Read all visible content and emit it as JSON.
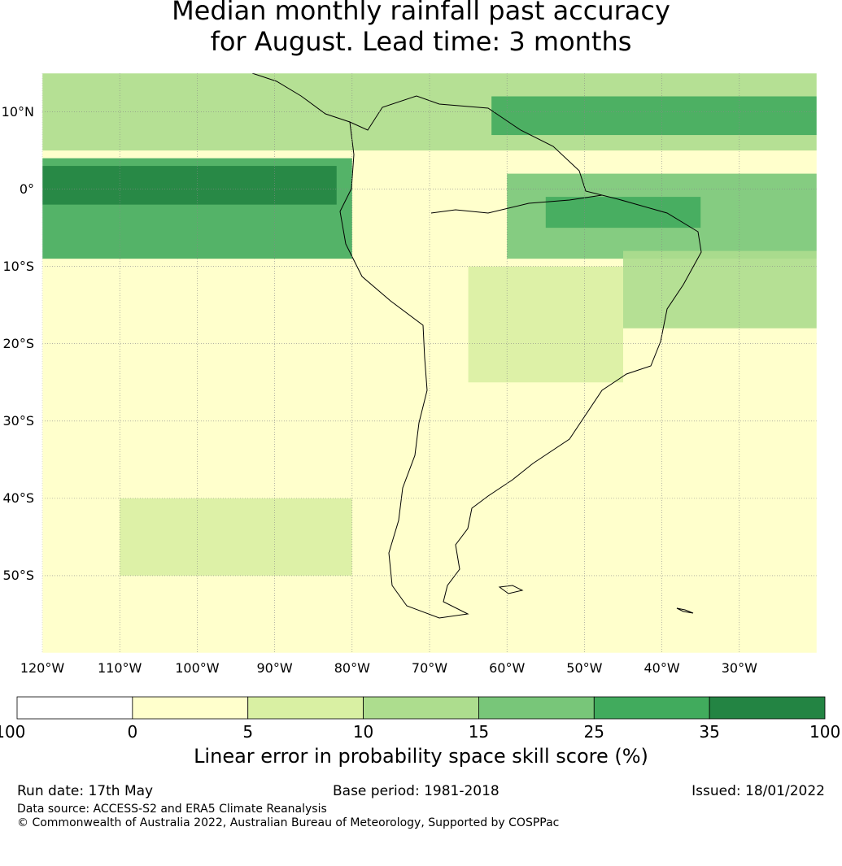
{
  "title": {
    "line1": "Median monthly rainfall past accuracy",
    "line2": "for August. Lead time: 3 months"
  },
  "map": {
    "projection": "equirectangular",
    "lon_range": [
      -120,
      -20
    ],
    "lat_range": [
      -60,
      15
    ],
    "gridlines": true,
    "lat_ticks": [
      {
        "value": 10,
        "label": "10°N"
      },
      {
        "value": 0,
        "label": "0°"
      },
      {
        "value": -10,
        "label": "10°S"
      },
      {
        "value": -20,
        "label": "20°S"
      },
      {
        "value": -30,
        "label": "30°S"
      },
      {
        "value": -40,
        "label": "40°S"
      },
      {
        "value": -50,
        "label": "50°S"
      }
    ],
    "lon_ticks": [
      {
        "value": -120,
        "label": "120°W"
      },
      {
        "value": -110,
        "label": "110°W"
      },
      {
        "value": -100,
        "label": "100°W"
      },
      {
        "value": -90,
        "label": "90°W"
      },
      {
        "value": -80,
        "label": "80°W"
      },
      {
        "value": -70,
        "label": "70°W"
      },
      {
        "value": -60,
        "label": "60°W"
      },
      {
        "value": -50,
        "label": "50°W"
      },
      {
        "value": -40,
        "label": "40°W"
      },
      {
        "value": -30,
        "label": "30°W"
      }
    ],
    "skill_zones": [
      {
        "name": "equatorial-pacific-band",
        "lon": [
          -120,
          -80
        ],
        "lat": [
          -9,
          4
        ],
        "level": 5
      },
      {
        "name": "equatorial-pacific-core",
        "lon": [
          -120,
          -82
        ],
        "lat": [
          -2,
          3
        ],
        "level": 6
      },
      {
        "name": "north-tropical-band",
        "lon": [
          -120,
          -20
        ],
        "lat": [
          5,
          15
        ],
        "level": 3
      },
      {
        "name": "north-atlantic-core",
        "lon": [
          -62,
          -20
        ],
        "lat": [
          7,
          12
        ],
        "level": 5
      },
      {
        "name": "amazon-atlantic-band",
        "lon": [
          -60,
          -20
        ],
        "lat": [
          -9,
          2
        ],
        "level": 4
      },
      {
        "name": "amazon-core",
        "lon": [
          -55,
          -35
        ],
        "lat": [
          -5,
          -1
        ],
        "level": 5
      },
      {
        "name": "northeast-brazil",
        "lon": [
          -45,
          -20
        ],
        "lat": [
          -18,
          -8
        ],
        "level": 3
      },
      {
        "name": "central-brazil",
        "lon": [
          -65,
          -45
        ],
        "lat": [
          -25,
          -10
        ],
        "level": 2
      },
      {
        "name": "southern-ocean-patch",
        "lon": [
          -110,
          -80
        ],
        "lat": [
          -50,
          -40
        ],
        "level": 2
      }
    ]
  },
  "colorbar": {
    "ticks": [
      "-100",
      "0",
      "5",
      "10",
      "15",
      "25",
      "35",
      "100"
    ],
    "colors": [
      "#ffffff",
      "#ffffcc",
      "#d9f0a3",
      "#addd8e",
      "#78c679",
      "#41ab5d",
      "#238443"
    ],
    "label": "Linear error in probability space skill score (%)"
  },
  "footer": {
    "run_date": "Run date: 17th May",
    "base_period": "Base period: 1981-2018",
    "issued": "Issued: 18/01/2022",
    "source": "Data source: ACCESS-S2 and ERA5 Climate Reanalysis",
    "copyright": "© Commonwealth of Australia 2022, Australian Bureau of Meteorology, Supported by COSPPac"
  }
}
